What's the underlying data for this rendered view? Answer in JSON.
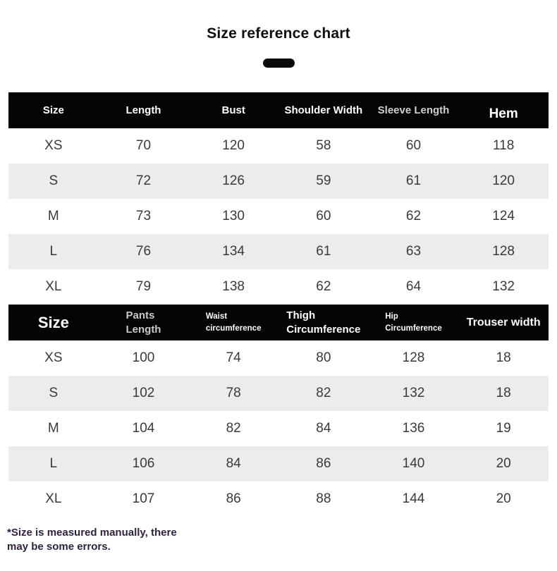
{
  "page": {
    "title": "Size reference chart",
    "footnote": "*Size is measured manually, there may be some errors."
  },
  "colors": {
    "header_bg": "#040404",
    "header_text": "#ffffff",
    "header_text_dim": "#cfcfcf",
    "alt_row_bg": "#ececec",
    "body_text": "#3a3a3a",
    "footnote_text": "#2e2342",
    "pill": "#0a0a0a"
  },
  "pants_header_lines": [
    [
      "Size"
    ],
    [
      "Pants",
      "Length"
    ],
    [
      "Waist",
      "circumference"
    ],
    [
      "Thigh",
      "Circumference"
    ],
    [
      "Hip",
      "Circumference"
    ],
    [
      "Trouser width"
    ]
  ],
  "chart_data": [
    {
      "type": "table",
      "title": "Size reference chart",
      "columns": [
        "Size",
        "Length",
        "Bust",
        "Shoulder Width",
        "Sleeve Length",
        "Hem"
      ],
      "rows": [
        [
          "XS",
          "70",
          "120",
          "58",
          "60",
          "118"
        ],
        [
          "S",
          "72",
          "126",
          "59",
          "61",
          "120"
        ],
        [
          "M",
          "73",
          "130",
          "60",
          "62",
          "124"
        ],
        [
          "L",
          "76",
          "134",
          "61",
          "63",
          "128"
        ],
        [
          "XL",
          "79",
          "138",
          "62",
          "64",
          "132"
        ]
      ]
    },
    {
      "type": "table",
      "title": "",
      "columns": [
        "Size",
        "Pants Length",
        "Waist circumference",
        "Thigh Circumference",
        "Hip Circumference",
        "Trouser width"
      ],
      "rows": [
        [
          "XS",
          "100",
          "74",
          "80",
          "128",
          "18"
        ],
        [
          "S",
          "102",
          "78",
          "82",
          "132",
          "18"
        ],
        [
          "M",
          "104",
          "82",
          "84",
          "136",
          "19"
        ],
        [
          "L",
          "106",
          "84",
          "86",
          "140",
          "20"
        ],
        [
          "XL",
          "107",
          "86",
          "88",
          "144",
          "20"
        ]
      ]
    }
  ]
}
